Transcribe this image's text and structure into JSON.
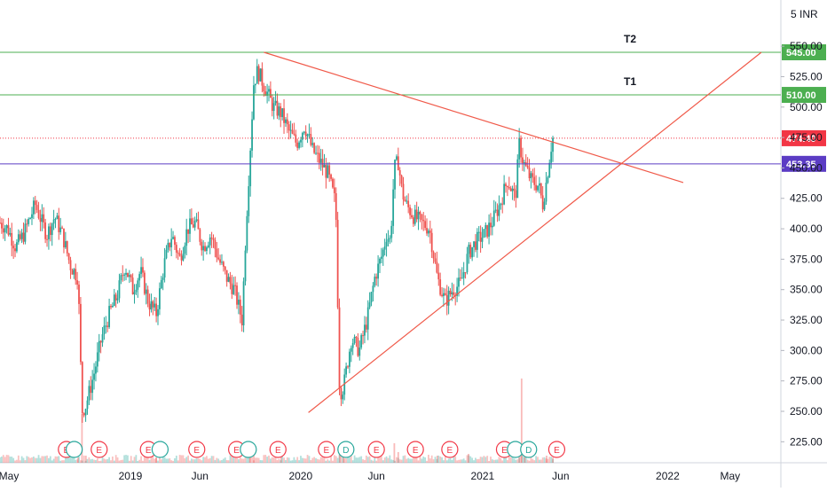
{
  "header": {
    "currency_label": "5 INR"
  },
  "chart_data": {
    "type": "candlestick",
    "currency": "INR",
    "ylim": [
      210,
      560
    ],
    "y_ticks": [
      225,
      250,
      275,
      300,
      325,
      350,
      375,
      400,
      425,
      450,
      475,
      500,
      525,
      550
    ],
    "y_tick_labels": [
      "225.00",
      "250.00",
      "275.00",
      "300.00",
      "325.00",
      "350.00",
      "375.00",
      "400.00",
      "425.00",
      "450.00",
      "475.00",
      "500.00",
      "525.00",
      "550.00"
    ],
    "x_ticks": [
      {
        "label": "May",
        "t": 0
      },
      {
        "label": "2019",
        "t": 0.167
      },
      {
        "label": "Jun",
        "t": 0.256
      },
      {
        "label": "2020",
        "t": 0.385
      },
      {
        "label": "Jun",
        "t": 0.482
      },
      {
        "label": "2021",
        "t": 0.618
      },
      {
        "label": "Jun",
        "t": 0.718
      },
      {
        "label": "2022",
        "t": 0.855
      },
      {
        "label": "May",
        "t": 0.935
      }
    ],
    "price_series": [
      [
        0.0,
        405
      ],
      [
        0.01,
        400
      ],
      [
        0.02,
        385
      ],
      [
        0.03,
        395
      ],
      [
        0.045,
        420
      ],
      [
        0.06,
        395
      ],
      [
        0.07,
        410
      ],
      [
        0.08,
        395
      ],
      [
        0.09,
        370
      ],
      [
        0.1,
        360
      ],
      [
        0.105,
        250
      ],
      [
        0.11,
        255
      ],
      [
        0.12,
        280
      ],
      [
        0.13,
        310
      ],
      [
        0.14,
        330
      ],
      [
        0.15,
        345
      ],
      [
        0.16,
        370
      ],
      [
        0.17,
        350
      ],
      [
        0.18,
        365
      ],
      [
        0.19,
        340
      ],
      [
        0.2,
        330
      ],
      [
        0.21,
        370
      ],
      [
        0.22,
        395
      ],
      [
        0.23,
        375
      ],
      [
        0.24,
        400
      ],
      [
        0.25,
        405
      ],
      [
        0.26,
        385
      ],
      [
        0.27,
        395
      ],
      [
        0.28,
        375
      ],
      [
        0.29,
        360
      ],
      [
        0.3,
        350
      ],
      [
        0.31,
        325
      ],
      [
        0.315,
        400
      ],
      [
        0.32,
        460
      ],
      [
        0.325,
        520
      ],
      [
        0.33,
        530
      ],
      [
        0.34,
        515
      ],
      [
        0.35,
        500
      ],
      [
        0.36,
        495
      ],
      [
        0.37,
        480
      ],
      [
        0.38,
        470
      ],
      [
        0.39,
        485
      ],
      [
        0.4,
        465
      ],
      [
        0.41,
        455
      ],
      [
        0.42,
        445
      ],
      [
        0.43,
        420
      ],
      [
        0.435,
        265
      ],
      [
        0.44,
        270
      ],
      [
        0.45,
        310
      ],
      [
        0.46,
        300
      ],
      [
        0.47,
        325
      ],
      [
        0.48,
        360
      ],
      [
        0.49,
        380
      ],
      [
        0.495,
        395
      ],
      [
        0.5,
        390
      ],
      [
        0.505,
        450
      ],
      [
        0.51,
        455
      ],
      [
        0.515,
        430
      ],
      [
        0.52,
        420
      ],
      [
        0.53,
        410
      ],
      [
        0.54,
        405
      ],
      [
        0.55,
        400
      ],
      [
        0.56,
        360
      ],
      [
        0.57,
        340
      ],
      [
        0.58,
        350
      ],
      [
        0.59,
        355
      ],
      [
        0.6,
        380
      ],
      [
        0.61,
        390
      ],
      [
        0.62,
        395
      ],
      [
        0.63,
        405
      ],
      [
        0.64,
        420
      ],
      [
        0.65,
        440
      ],
      [
        0.66,
        425
      ],
      [
        0.665,
        470
      ],
      [
        0.67,
        455
      ],
      [
        0.68,
        440
      ],
      [
        0.69,
        435
      ],
      [
        0.695,
        420
      ],
      [
        0.7,
        440
      ],
      [
        0.705,
        465
      ],
      [
        0.708,
        474.4
      ]
    ],
    "volume_series": [
      [
        0.1,
        6
      ],
      [
        0.105,
        55
      ],
      [
        0.11,
        8
      ],
      [
        0.2,
        6
      ],
      [
        0.32,
        10
      ],
      [
        0.325,
        18
      ],
      [
        0.36,
        9
      ],
      [
        0.435,
        14
      ],
      [
        0.44,
        10
      ],
      [
        0.505,
        22
      ],
      [
        0.51,
        12
      ],
      [
        0.56,
        8
      ],
      [
        0.6,
        10
      ],
      [
        0.665,
        15
      ],
      [
        0.668,
        95
      ],
      [
        0.672,
        12
      ],
      [
        0.7,
        8
      ],
      [
        0.708,
        6
      ]
    ],
    "horizontal_lines": [
      {
        "label": "T2",
        "price": 545.0,
        "tag": "545.00",
        "color": "#4caf50"
      },
      {
        "label": "T1",
        "price": 510.0,
        "tag": "510.00",
        "color": "#4caf50"
      },
      {
        "label": "",
        "price": 474.4,
        "tag": "474.40",
        "color": "#f23645",
        "dotted": true
      },
      {
        "label": "",
        "price": 453.35,
        "tag": "453.35",
        "color": "#5b3cc4"
      }
    ],
    "trendlines": [
      {
        "name": "descending-resistance",
        "from": [
          0.338,
          545
        ],
        "to": [
          0.875,
          438
        ],
        "color": "#f05a4a"
      },
      {
        "name": "ascending-support",
        "from": [
          0.395,
          249
        ],
        "to": [
          0.975,
          545
        ],
        "color": "#f05a4a"
      }
    ],
    "events": [
      {
        "t": 0.085,
        "letter": "E"
      },
      {
        "t": 0.095,
        "letter": ""
      },
      {
        "t": 0.127,
        "letter": "E"
      },
      {
        "t": 0.19,
        "letter": "E"
      },
      {
        "t": 0.205,
        "letter": ""
      },
      {
        "t": 0.252,
        "letter": "E"
      },
      {
        "t": 0.303,
        "letter": "E"
      },
      {
        "t": 0.318,
        "letter": ""
      },
      {
        "t": 0.356,
        "letter": "E"
      },
      {
        "t": 0.418,
        "letter": "E"
      },
      {
        "t": 0.443,
        "letter": "D"
      },
      {
        "t": 0.482,
        "letter": "E"
      },
      {
        "t": 0.532,
        "letter": "E"
      },
      {
        "t": 0.576,
        "letter": "E"
      },
      {
        "t": 0.646,
        "letter": "E"
      },
      {
        "t": 0.66,
        "letter": ""
      },
      {
        "t": 0.677,
        "letter": "D"
      },
      {
        "t": 0.713,
        "letter": "E"
      }
    ]
  },
  "colors": {
    "up": "#26a69a",
    "down": "#ef5350",
    "grid": "#e0e3eb",
    "axis_text": "#131722",
    "event_red": "#f23645",
    "event_teal": "#26a69a"
  }
}
